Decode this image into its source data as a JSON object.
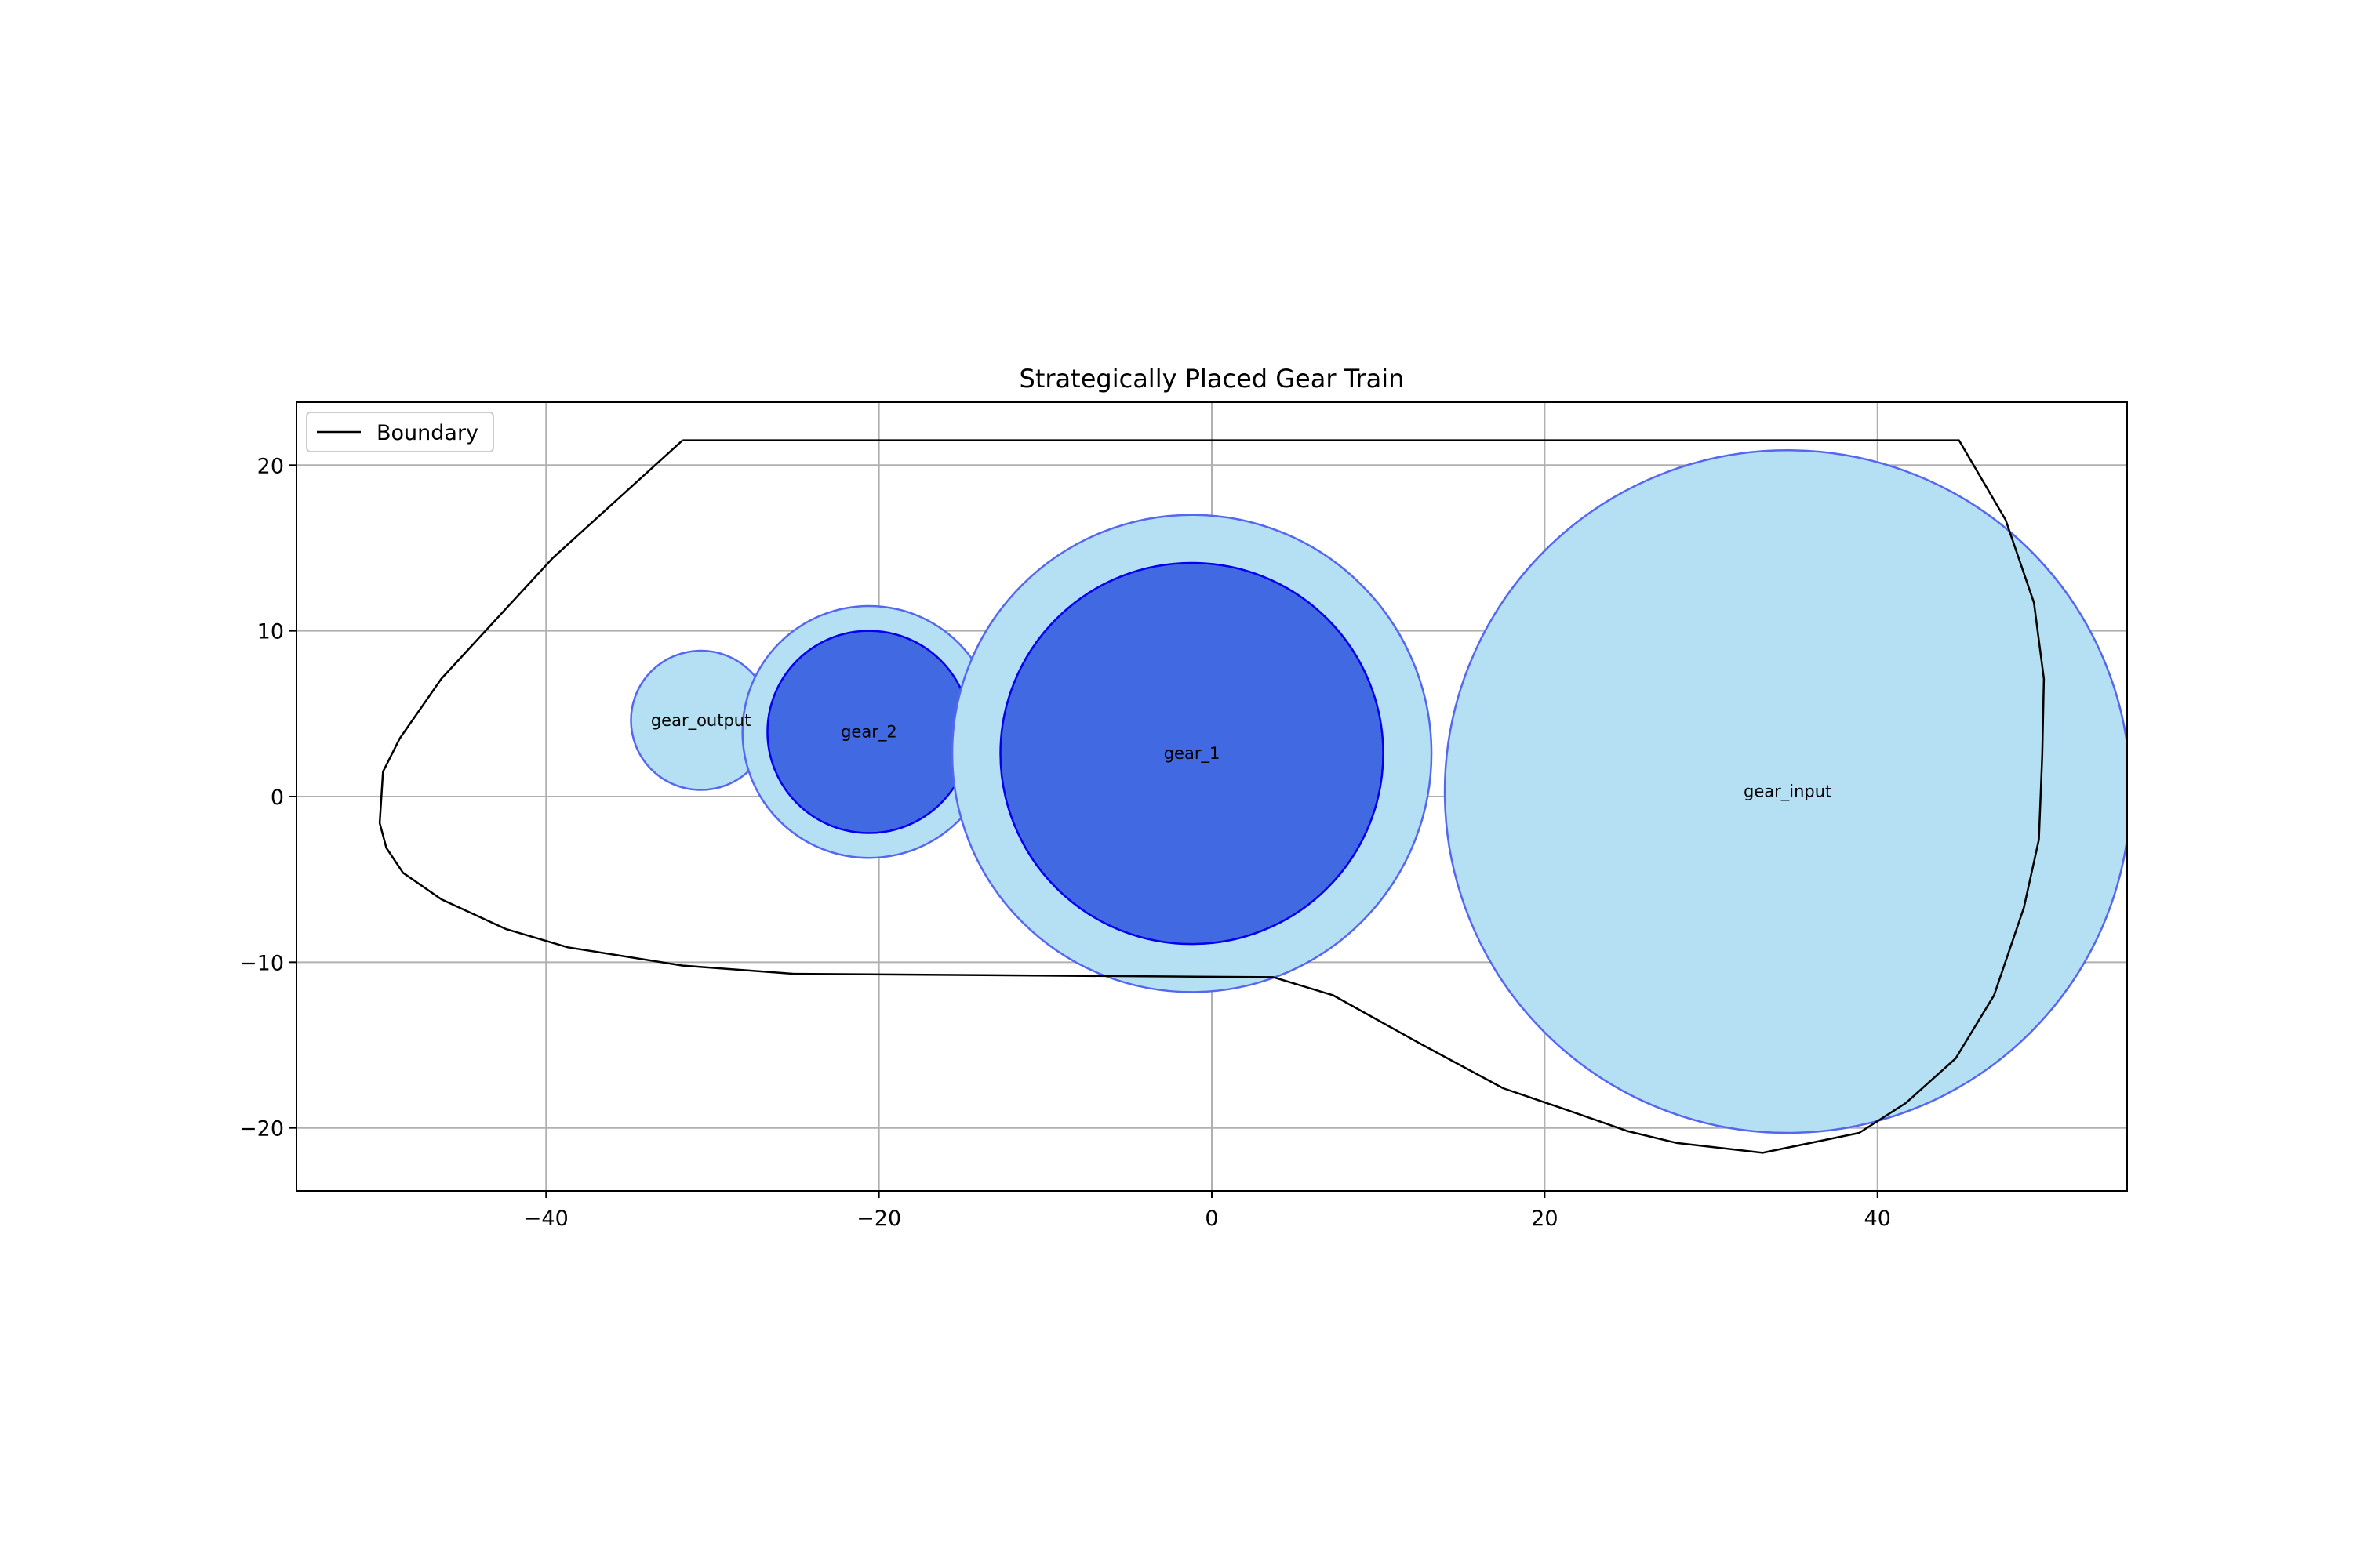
{
  "chart_data": {
    "type": "scatter",
    "title": "Strategically Placed Gear Train",
    "xlabel": "",
    "ylabel": "",
    "xlim": [
      -55,
      55
    ],
    "ylim": [
      -23.8,
      23.8
    ],
    "xticks": [
      -40,
      -20,
      0,
      20,
      40
    ],
    "yticks": [
      -20,
      -10,
      0,
      10,
      20
    ],
    "xtick_labels": [
      "−40",
      "−20",
      "0",
      "20",
      "40"
    ],
    "ytick_labels": [
      "−20",
      "−10",
      "0",
      "10",
      "20"
    ],
    "grid": true,
    "legend": {
      "placement": "top-left",
      "entries": [
        {
          "label": "Boundary",
          "color": "#000000"
        }
      ]
    },
    "boundary": {
      "name": "Boundary",
      "color": "#000000",
      "points": [
        [
          -31.8,
          21.5
        ],
        [
          44.9,
          21.5
        ],
        [
          47.7,
          16.7
        ],
        [
          49.4,
          11.7
        ],
        [
          50.0,
          7.1
        ],
        [
          49.9,
          2.5
        ],
        [
          49.7,
          -2.6
        ],
        [
          48.8,
          -6.7
        ],
        [
          47.0,
          -12.0
        ],
        [
          44.7,
          -15.8
        ],
        [
          41.7,
          -18.5
        ],
        [
          38.9,
          -20.3
        ],
        [
          33.1,
          -21.5
        ],
        [
          27.9,
          -20.9
        ],
        [
          25.0,
          -20.2
        ],
        [
          21.0,
          -18.8
        ],
        [
          17.5,
          -17.6
        ],
        [
          12.5,
          -14.9
        ],
        [
          7.3,
          -12.0
        ],
        [
          3.7,
          -10.9
        ],
        [
          -25.1,
          -10.7
        ],
        [
          -31.8,
          -10.2
        ],
        [
          -38.7,
          -9.1
        ],
        [
          -42.4,
          -8.0
        ],
        [
          -46.3,
          -6.2
        ],
        [
          -48.6,
          -4.6
        ],
        [
          -49.6,
          -3.1
        ],
        [
          -50.0,
          -1.6
        ],
        [
          -49.8,
          1.5
        ],
        [
          -48.8,
          3.5
        ],
        [
          -46.3,
          7.1
        ],
        [
          -43.0,
          10.7
        ],
        [
          -39.6,
          14.4
        ],
        [
          -31.8,
          21.5
        ]
      ]
    },
    "gears": [
      {
        "name": "gear_output",
        "x": -30.7,
        "y": 4.6,
        "outer_r": 4.2
      },
      {
        "name": "gear_2",
        "x": -20.6,
        "y": 3.9,
        "outer_r": 7.6,
        "inner_r": 6.1
      },
      {
        "name": "gear_1",
        "x": -1.2,
        "y": 2.6,
        "outer_r": 14.4,
        "inner_r": 11.5
      },
      {
        "name": "gear_input",
        "x": 34.6,
        "y": 0.3,
        "outer_r": 20.6
      }
    ],
    "colors": {
      "outer_fill": "#b5dff2",
      "outer_edge": "#5566f0",
      "inner_fill": "#4169e1",
      "inner_edge": "#0000ee",
      "grid": "#b0b0b0"
    }
  }
}
